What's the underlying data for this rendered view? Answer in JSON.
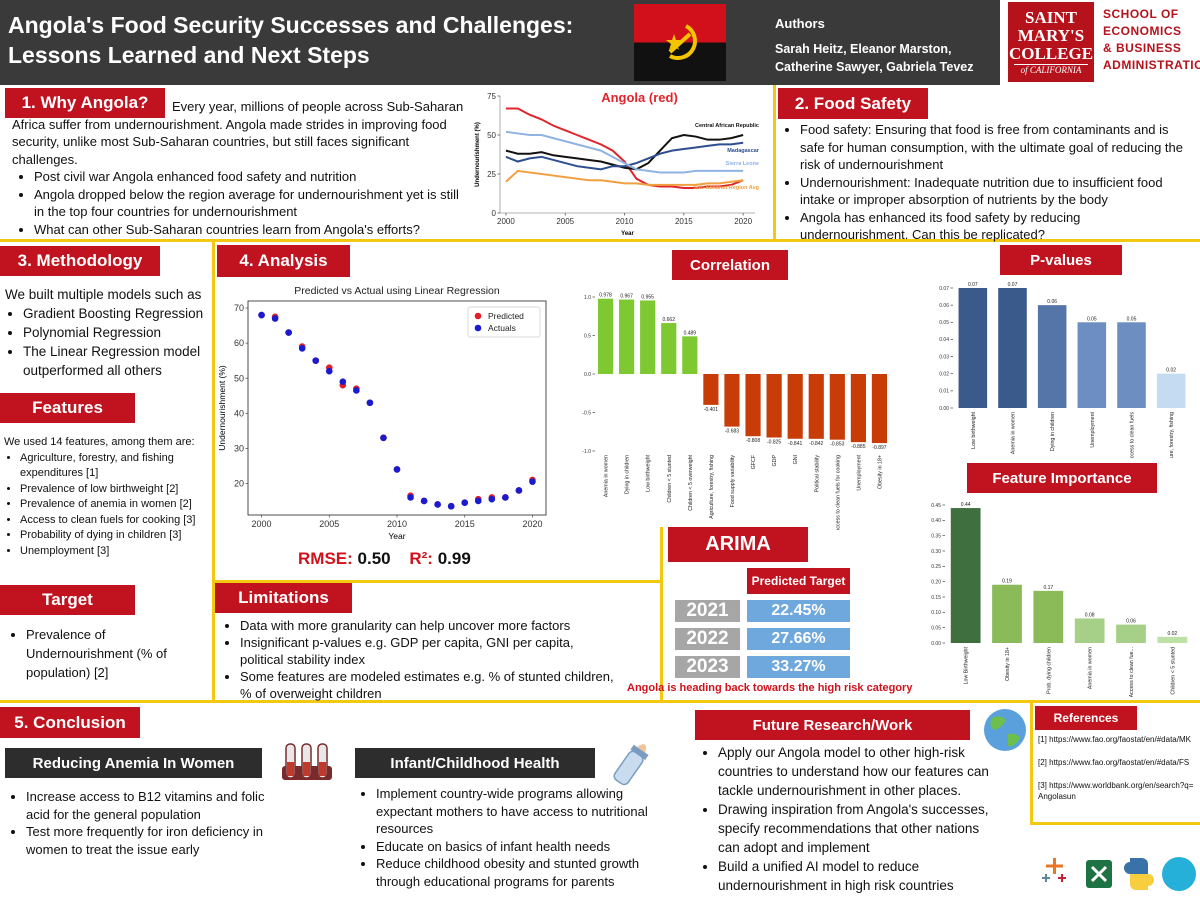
{
  "header": {
    "title": "Angola's Food Security Successes and Challenges: Lessons Learned and Next Steps",
    "authors_label": "Authors",
    "authors": "Sarah Heitz, Eleanor Marston, Catherine Sawyer, Gabriela Tevez",
    "logo_college": [
      "SAINT",
      "MARY'S",
      "COLLEGE",
      "of CALIFORNIA"
    ],
    "logo_school": [
      "SCHOOL OF",
      "ECONOMICS",
      "& BUSINESS",
      "ADMINISTRATION"
    ]
  },
  "why": {
    "heading": "1. Why Angola?",
    "intro": "Every year, millions of people across Sub-Saharan Africa suffer from undernourishment. Angola made strides in improving food security, unlike most Sub-Saharan countries, but still faces significant challenges.",
    "bullets": [
      "Post civil war Angola enhanced food safety and nutrition",
      "Angola dropped below the region average for undernourishment yet is still in the top four countries for undernourishment",
      "What can other Sub-Saharan countries learn from Angola's efforts?"
    ]
  },
  "food_safety": {
    "heading": "2. Food Safety",
    "bullets": [
      "Food safety: Ensuring that food is free from contaminants and is safe for human consumption, with the ultimate goal of reducing the risk of undernourishment",
      "Undernourishment: Inadequate nutrition due to insufficient food intake or improper absorption of nutrients by the body",
      "Angola has enhanced its food safety by reducing undernourishment. Can this be replicated?"
    ]
  },
  "methodology": {
    "heading": "3. Methodology",
    "intro": "We built multiple models such as",
    "bullets": [
      "Gradient Boosting Regression",
      "Polynomial Regression",
      "The Linear Regression model outperformed all others"
    ]
  },
  "features": {
    "heading": "Features",
    "intro": "We used 14 features, among them are:",
    "bullets": [
      "Agriculture, forestry, and fishing expenditures [1]",
      "Prevalence of low birthweight [2]",
      "Prevalence of anemia in women  [2]",
      "Access to clean fuels for cooking [3]",
      "Probability of dying in children [3]",
      "Unemployment [3]"
    ]
  },
  "target": {
    "heading": "Target",
    "bullets": [
      "Prevalence of Undernourishment (% of population) [2]"
    ]
  },
  "analysis": {
    "heading": "4. Analysis",
    "rmse_label": "RMSE:",
    "rmse": "0.50",
    "r2_label": "R²:",
    "r2": "0.99"
  },
  "arima": {
    "heading": "ARIMA",
    "column": "Predicted Target",
    "rows": [
      [
        "2021",
        "22.45%"
      ],
      [
        "2022",
        "27.66%"
      ],
      [
        "2023",
        "33.27%"
      ]
    ],
    "note": "Angola is heading back towards the high risk category"
  },
  "limitations": {
    "heading": "Limitations",
    "bullets": [
      "Data with more granularity can help uncover more factors",
      "Insignificant p-values e.g. GDP per capita, GNI per capita, political stability index",
      "Some features are modeled estimates e.g. % of stunted children, % of overweight children"
    ]
  },
  "conclusion": {
    "heading": "5. Conclusion",
    "anemia": {
      "heading": "Reducing Anemia In Women",
      "bullets": [
        "Increase access to B12 vitamins and folic acid for the general population",
        "Test more frequently for iron deficiency in women to treat the issue early"
      ]
    },
    "infant": {
      "heading": "Infant/Childhood Health",
      "bullets": [
        "Implement country-wide programs allowing expectant mothers to have access to nutritional resources",
        "Educate on basics of infant health needs",
        "Reduce childhood obesity and stunted growth through educational programs for parents"
      ]
    }
  },
  "future": {
    "heading": "Future Research/Work",
    "bullets": [
      "Apply our Angola model to other high-risk countries to understand how our features can tackle undernourishment in other places.",
      "Drawing inspiration from Angola's successes, specify recommendations that other nations can adopt and implement",
      "Build a unified AI model to reduce undernourishment in high risk  countries"
    ]
  },
  "references": {
    "heading": "References",
    "items": [
      "[1] https://www.fao.org/faostat/en/#data/MK",
      "[2] https://www.fao.org/faostat/en/#data/FS",
      "[3] https://www.worldbank.org/en/search?q=Angolasun"
    ]
  },
  "chart_data": [
    {
      "type": "line",
      "title": "Angola (red)",
      "title_color": "#e0252c",
      "x_label": "Year",
      "y_label": "Undernourishment (%)",
      "x": [
        2000,
        2001,
        2002,
        2003,
        2004,
        2005,
        2006,
        2007,
        2008,
        2009,
        2010,
        2011,
        2012,
        2013,
        2014,
        2015,
        2016,
        2017,
        2018,
        2019,
        2020
      ],
      "xlim": [
        1999.5,
        2021
      ],
      "xticks": [
        2000,
        2005,
        2010,
        2015,
        2020
      ],
      "ylim": [
        0,
        75
      ],
      "yticks": [
        0,
        25,
        50,
        75
      ],
      "series": [
        {
          "color": "#e0252c",
          "values": [
            67,
            67,
            63,
            60,
            56,
            53,
            50,
            47,
            44,
            40,
            33,
            22,
            18,
            17,
            17,
            16,
            16,
            17,
            17,
            18,
            21
          ]
        },
        {
          "name": "Central African Republic",
          "color": "#111111",
          "values": [
            40,
            38,
            38,
            39,
            37,
            36,
            35,
            34,
            33,
            31,
            29,
            28,
            32,
            40,
            48,
            50,
            49,
            47,
            47,
            48,
            50
          ]
        },
        {
          "name": "Madagascar",
          "color": "#2d4f8f",
          "values": [
            36,
            33,
            35,
            36,
            34,
            32,
            30,
            29,
            28,
            30,
            30,
            32,
            35,
            38,
            40,
            41,
            42,
            43,
            44,
            44,
            45
          ]
        },
        {
          "name": "Sierra Leone",
          "color": "#8fb4e3",
          "values": [
            52,
            51,
            50,
            50,
            48,
            46,
            44,
            42,
            40,
            36,
            32,
            28,
            27,
            26,
            26,
            26,
            27,
            27,
            27,
            27,
            27
          ]
        },
        {
          "name": "Sub-Saharan Region Avg",
          "color": "#f0a040",
          "values": [
            20,
            27,
            26,
            25,
            24,
            23,
            22,
            21,
            21,
            20,
            19,
            19,
            18,
            18,
            18,
            18,
            18,
            19,
            19,
            20,
            21
          ]
        }
      ]
    },
    {
      "type": "scatter",
      "title": "Predicted vs Actual using Linear Regression",
      "x_label": "Year",
      "y_label": "Undernourishment (%)",
      "legend": "upper right",
      "x": [
        2000,
        2001,
        2002,
        2003,
        2004,
        2005,
        2006,
        2007,
        2008,
        2009,
        2010,
        2011,
        2012,
        2013,
        2014,
        2015,
        2016,
        2017,
        2018,
        2019,
        2020
      ],
      "xlim": [
        1999,
        2021
      ],
      "xticks": [
        2000,
        2005,
        2010,
        2015,
        2020
      ],
      "ylim": [
        11,
        72
      ],
      "yticks": [
        20,
        30,
        40,
        50,
        60,
        70
      ],
      "series": [
        {
          "name": "Predicted",
          "color": "#e0202a",
          "values": [
            68,
            67.5,
            63,
            59,
            55,
            53,
            48,
            47,
            43,
            33,
            24,
            16.5,
            15,
            14,
            13.5,
            14.5,
            15.5,
            16,
            16,
            18,
            21
          ]
        },
        {
          "name": "Actuals",
          "color": "#1a1ad0",
          "values": [
            68,
            67,
            63,
            58.5,
            55,
            52,
            49,
            46.5,
            43,
            33,
            24,
            16,
            15,
            14,
            13.5,
            14.5,
            15,
            15.5,
            16,
            18,
            20.5
          ]
        }
      ]
    },
    {
      "type": "bar",
      "title": "Correlation",
      "categories": [
        "Anemia in women",
        "Dying in children",
        "Low birthweight",
        "Children < 5 stunted",
        "Children < 5 overweight",
        "Agriculture, forestry, fishing",
        "Food supply variability",
        "GFCF",
        "GDP",
        "GNI",
        "Political stability",
        "Access to clean fuels for cooking",
        "Unemployment",
        "Obesity in 18+"
      ],
      "values": [
        0.978,
        0.967,
        0.955,
        0.662,
        0.489,
        -0.401,
        -0.683,
        -0.808,
        -0.825,
        -0.841,
        -0.842,
        -0.853,
        -0.885,
        -0.897
      ],
      "colors": [
        "#7ec832",
        "#7ec832",
        "#7ec832",
        "#7ec832",
        "#7ec832",
        "#c83c08",
        "#c83c08",
        "#c83c08",
        "#c83c08",
        "#c83c08",
        "#c83c08",
        "#c83c08",
        "#c83c08",
        "#c83c08"
      ],
      "ylim": [
        -1,
        1
      ],
      "yticks": [
        {
          "value": -1,
          "label": "-1.0"
        },
        -0.5,
        {
          "value": 0,
          "label": "0.0"
        },
        0.5,
        {
          "value": 1,
          "label": "1.0"
        }
      ]
    },
    {
      "type": "bar",
      "title": "P-values",
      "categories": [
        "Low birthweight",
        "Anemia in women",
        "Dying in children",
        "Unemployment",
        "Access to clean fuels",
        "Agriculture, forestry, fishing"
      ],
      "values": [
        0.07,
        0.07,
        0.06,
        0.05,
        0.05,
        0.02
      ],
      "colors": [
        "#3b5a8c",
        "#3b5a8c",
        "#5574a8",
        "#6d8ec0",
        "#6d8ec0",
        "#c4dbf2"
      ],
      "ylim": [
        0,
        0.07
      ],
      "yticks": [
        {
          "value": 0,
          "label": "0.00"
        },
        0.01,
        0.02,
        0.03,
        0.04,
        0.05,
        0.06,
        0.07
      ]
    },
    {
      "type": "bar",
      "title": "Feature Importance",
      "categories": [
        "Low Birthweight",
        "Obesity in 18+",
        "Prob. dying children",
        "Anemia in women",
        "Access to clean fue...",
        "Children < 5 stunted"
      ],
      "values": [
        0.44,
        0.19,
        0.17,
        0.08,
        0.06,
        0.02
      ],
      "colors": [
        "#3f6e3f",
        "#8abb58",
        "#8abb58",
        "#a6d088",
        "#a6d088",
        "#bde0a6"
      ],
      "ylim": [
        0,
        0.45
      ],
      "yticks": [
        {
          "value": 0,
          "label": "0.00"
        },
        0.05,
        {
          "value": 0.1,
          "label": "0.10"
        },
        0.15,
        {
          "value": 0.2,
          "label": "0.20"
        },
        0.25,
        {
          "value": 0.3,
          "label": "0.30"
        },
        0.35,
        {
          "value": 0.4,
          "label": "0.40"
        },
        0.45
      ]
    }
  ]
}
